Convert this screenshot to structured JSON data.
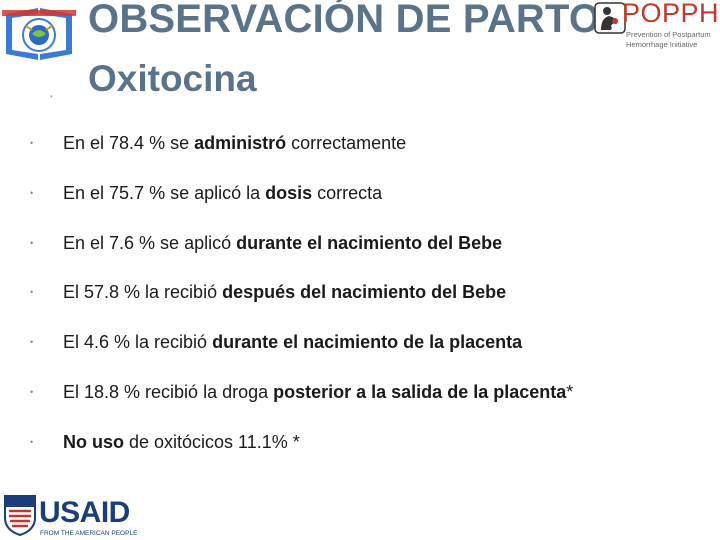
{
  "header": {
    "title": "OBSERVACIÓN DE PARTO",
    "subtitle": "Oxitocina"
  },
  "popphi_logo": {
    "name": "POPPHI",
    "tagline_line1": "Prevention of Postpartum",
    "tagline_line2": "Hemorrhage Initiative",
    "color": "#c0392b"
  },
  "usaid_logo": {
    "wordmark": "USAID",
    "tagline": "FROM THE AMERICAN PEOPLE",
    "color": "#1b3e7a"
  },
  "bullet_glyph": "•",
  "bullets": [
    {
      "pre": "En el  78.4 % se ",
      "bold": "administró",
      "post": " correctamente"
    },
    {
      "pre": "En el  75.7 % se aplicó la ",
      "bold": "dosis",
      "post": " correcta"
    },
    {
      "pre": "En el  7.6  %  se aplicó ",
      "bold": "durante el nacimiento del Bebe",
      "post": ""
    },
    {
      "pre": "El  57.8 % la recibió ",
      "bold": "después del nacimiento del Bebe",
      "post": ""
    },
    {
      "pre": "El  4.6 %  la recibió ",
      "bold": "durante el nacimiento de la placenta",
      "post": ""
    },
    {
      "pre": "El 18.8 % recibió la droga ",
      "bold": "posterior a la salida de la placenta",
      "post": "*"
    },
    {
      "pre": "",
      "bold": "No uso",
      "post": " de oxitócicos 11.1% *"
    }
  ],
  "colors": {
    "title": "#5a7388",
    "text": "#1a1a1a"
  }
}
